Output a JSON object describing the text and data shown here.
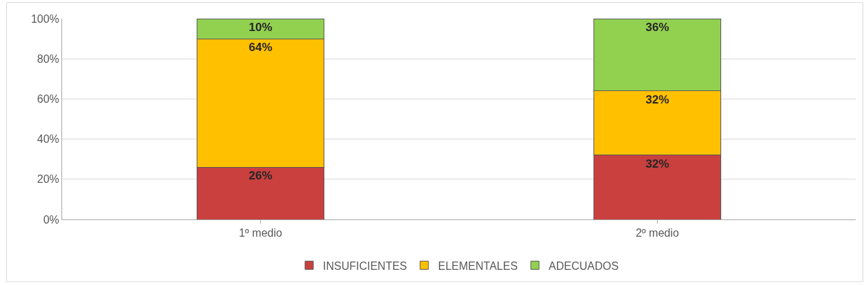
{
  "chart_data": {
    "type": "bar",
    "stacked": true,
    "categories": [
      "1º medio",
      "2º medio"
    ],
    "series": [
      {
        "name": "INSUFICIENTES",
        "color": "#c9403f",
        "values": [
          26,
          32
        ],
        "value_labels": [
          "26%",
          "32%"
        ]
      },
      {
        "name": "ELEMENTALES",
        "color": "#ffc000",
        "values": [
          64,
          32
        ],
        "value_labels": [
          "64%",
          "32%"
        ]
      },
      {
        "name": "ADECUADOS",
        "color": "#92d050",
        "values": [
          10,
          36
        ],
        "value_labels": [
          "10%",
          "36%"
        ]
      }
    ],
    "ylim": [
      0,
      100
    ],
    "yticks": [
      {
        "value": 0,
        "label": "0%"
      },
      {
        "value": 20,
        "label": "20%"
      },
      {
        "value": 40,
        "label": "40%"
      },
      {
        "value": 60,
        "label": "60%"
      },
      {
        "value": 80,
        "label": "80%"
      },
      {
        "value": 100,
        "label": "100%"
      }
    ],
    "grid": "y",
    "legend": "bottom"
  }
}
